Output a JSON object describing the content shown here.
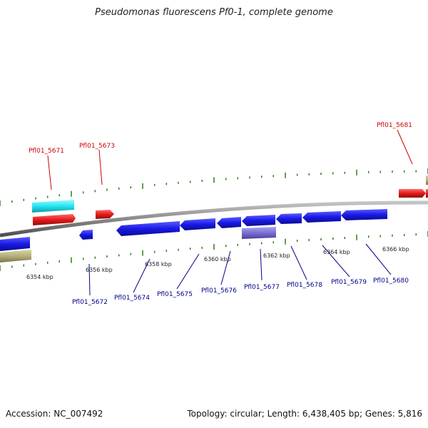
{
  "title": "Pseudomonas fluorescens Pf0-1, complete genome",
  "footer": {
    "accession": "Accession: NC_007492",
    "summary": "Topology: circular; Length: 6,438,405 bp; Genes: 5,816"
  },
  "colors": {
    "backbone": "#8a8a8a",
    "tick": "#2e7d1a",
    "gene_blue": "#1a1ae6",
    "gene_red": "#e61a1a",
    "gene_cyan": "#22e6f0",
    "gene_olive": "#b5b07a",
    "gene_violet": "#7a6fd6",
    "label_top": "#cc0000",
    "label_bottom": "#000088"
  },
  "scale_labels": [
    "6354 kbp",
    "6356 kbp",
    "6358 kbp",
    "6360 kbp",
    "6362 kbp",
    "6364 kbp",
    "6366 kbp"
  ],
  "top_labels": [
    "Pfl01_5671",
    "Pfl01_5673",
    "Pfl01_5681"
  ],
  "bottom_labels": [
    "Pfl01_5672",
    "Pfl01_5674",
    "Pfl01_5675",
    "Pfl01_5676",
    "Pfl01_5677",
    "Pfl01_5678",
    "Pfl01_5679",
    "Pfl01_5680"
  ]
}
